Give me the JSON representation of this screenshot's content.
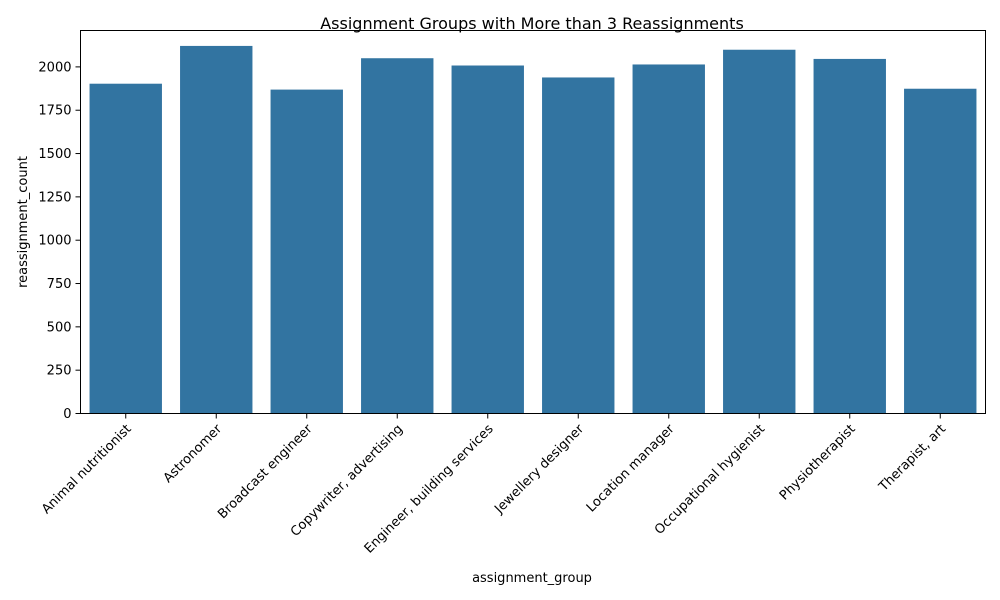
{
  "chart_data": {
    "type": "bar",
    "title": "Assignment Groups with More than 3 Reassignments",
    "xlabel": "assignment_group",
    "ylabel": "reassignment_count",
    "categories": [
      "Animal nutritionist",
      "Astronomer",
      "Broadcast engineer",
      "Copywriter, advertising",
      "Engineer, building services",
      "Jewellery designer",
      "Location manager",
      "Occupational hygienist",
      "Physiotherapist",
      "Therapist, art"
    ],
    "values": [
      1903,
      2121,
      1869,
      2050,
      2008,
      1939,
      2014,
      2099,
      2046,
      1874
    ],
    "ylim": [
      0,
      2210
    ],
    "yticks": [
      0,
      250,
      500,
      750,
      1000,
      1250,
      1500,
      1750,
      2000
    ],
    "bar_color": "#3274a1",
    "grid": false,
    "legend": "none"
  }
}
